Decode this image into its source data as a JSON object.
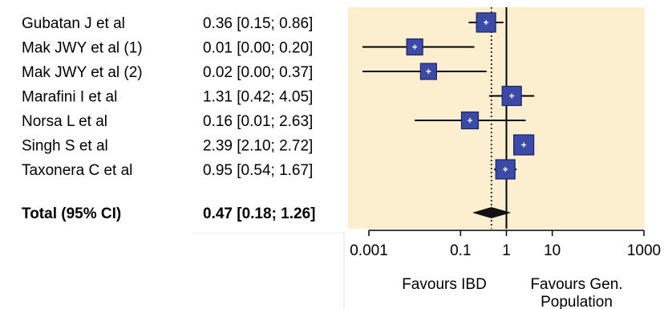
{
  "chart_data": {
    "type": "forest",
    "scale": "log",
    "xlim": [
      0.001,
      1000
    ],
    "x_ticks": [
      "0.001",
      "0.1",
      "1",
      "10",
      "1000"
    ],
    "x_tick_values": [
      0.001,
      0.1,
      1,
      10,
      1000
    ],
    "null_line": 1,
    "pooled_line": 0.47,
    "favours_left": "Favours IBD",
    "favours_right": "Favours Gen. Population",
    "favours_right_lines": [
      "Favours Gen.",
      "Population"
    ],
    "studies": [
      {
        "study": "Gubatan J et al",
        "ci_text": "0.36 [0.15; 0.86]",
        "est": 0.36,
        "lo": 0.15,
        "hi": 0.86,
        "weight": 1.0
      },
      {
        "study": "Mak JWY et al (1)",
        "ci_text": "0.01 [0.00; 0.20]",
        "est": 0.01,
        "lo": 0.0,
        "hi": 0.2,
        "weight": 0.6
      },
      {
        "study": "Mak JWY et al (2)",
        "ci_text": "0.02 [0.00; 0.37]",
        "est": 0.02,
        "lo": 0.0,
        "hi": 0.37,
        "weight": 0.6
      },
      {
        "study": "Marafini I et al",
        "ci_text": "1.31 [0.42; 4.05]",
        "est": 1.31,
        "lo": 0.42,
        "hi": 4.05,
        "weight": 1.0
      },
      {
        "study": "Norsa L et al",
        "ci_text": "0.16 [0.01; 2.63]",
        "est": 0.16,
        "lo": 0.01,
        "hi": 2.63,
        "weight": 0.7
      },
      {
        "study": "Singh S et al",
        "ci_text": "2.39 [2.10; 2.72]",
        "est": 2.39,
        "lo": 2.1,
        "hi": 2.72,
        "weight": 1.1
      },
      {
        "study": "Taxonera C et al",
        "ci_text": "0.95 [0.54; 1.67]",
        "est": 0.95,
        "lo": 0.54,
        "hi": 1.67,
        "weight": 1.0
      }
    ],
    "total": {
      "label": "Total (95% CI)",
      "ci_text": "0.47 [0.18; 1.26]",
      "est": 0.47,
      "lo": 0.18,
      "hi": 1.26
    },
    "colors": {
      "panel": "#fbefcf",
      "box_fill": "#3b4aa6",
      "box_stroke": "#1c2466",
      "diamond": "#111111",
      "line": "#000000"
    }
  }
}
